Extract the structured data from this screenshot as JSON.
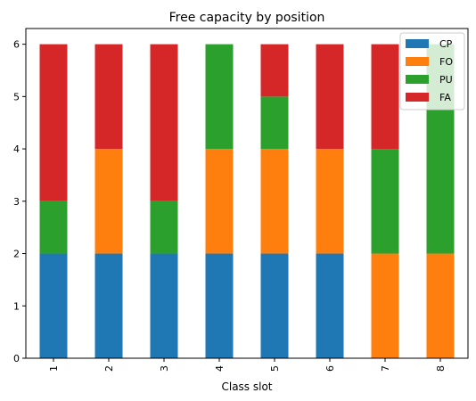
{
  "chart_data": {
    "type": "bar",
    "stacked": true,
    "title": "Free capacity by position",
    "xlabel": "Class slot",
    "ylabel": "",
    "categories": [
      "1",
      "2",
      "3",
      "4",
      "5",
      "6",
      "7",
      "8"
    ],
    "ylim": [
      0,
      6.3
    ],
    "yticks": [
      0,
      1,
      2,
      3,
      4,
      5,
      6
    ],
    "grid": false,
    "legend_position": "top-right",
    "series": [
      {
        "name": "CP",
        "color": "#1f77b4",
        "values": [
          2,
          2,
          2,
          2,
          2,
          2,
          0,
          0
        ]
      },
      {
        "name": "FO",
        "color": "#ff7f0e",
        "values": [
          0,
          2,
          0,
          2,
          2,
          2,
          2,
          2
        ]
      },
      {
        "name": "PU",
        "color": "#2ca02c",
        "values": [
          1,
          0,
          1,
          2,
          1,
          0,
          2,
          4
        ]
      },
      {
        "name": "FA",
        "color": "#d62728",
        "values": [
          3,
          2,
          3,
          0,
          1,
          2,
          2,
          0
        ]
      }
    ]
  }
}
